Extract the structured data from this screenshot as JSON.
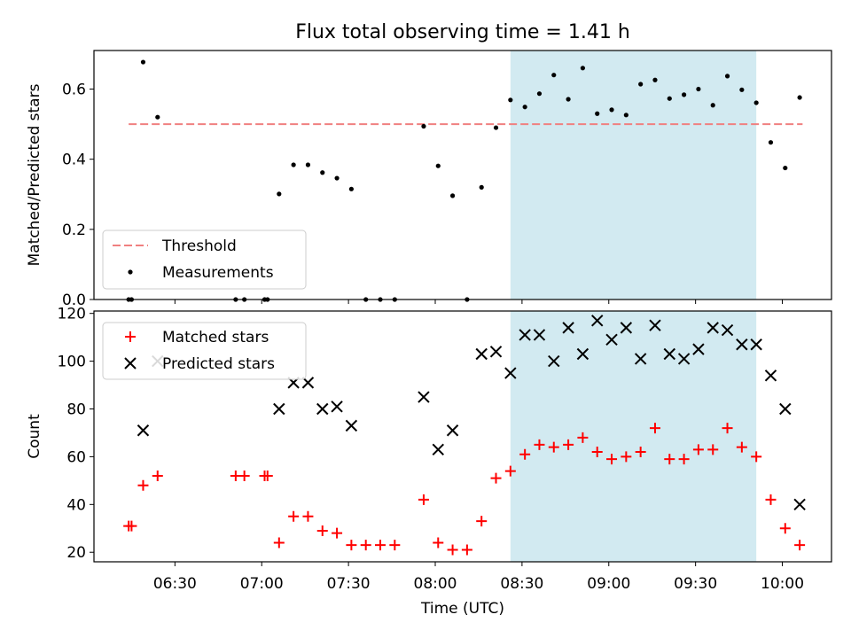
{
  "figure": {
    "title": "Flux total observing time = 1.41 h"
  },
  "chart_data": [
    {
      "type": "scatter",
      "ylabel": "Matched/Predicted stars",
      "xlabel": "",
      "x_unit": "minutes of day (UTC)",
      "xlim": [
        362,
        617
      ],
      "ylim": [
        0,
        0.71
      ],
      "yticks": [
        {
          "value": 0,
          "label": "0.0"
        },
        {
          "value": 0.2,
          "label": "0.2"
        },
        {
          "value": 0.4,
          "label": "0.4"
        },
        {
          "value": 0.6,
          "label": "0.6"
        }
      ],
      "xticks": [
        {
          "value": 390,
          "label": "06:30"
        },
        {
          "value": 420,
          "label": "07:00"
        },
        {
          "value": 450,
          "label": "07:30"
        },
        {
          "value": 480,
          "label": "08:00"
        },
        {
          "value": 510,
          "label": "08:30"
        },
        {
          "value": 540,
          "label": "09:00"
        },
        {
          "value": 570,
          "label": "09:30"
        },
        {
          "value": 600,
          "label": "10:00"
        }
      ],
      "shaded_span": {
        "x0": 506,
        "x1": 591,
        "color": "#add8e6"
      },
      "threshold": {
        "name": "Threshold",
        "value": 0.5,
        "x0": 374,
        "x1": 607,
        "color": "#f08080"
      },
      "series": [
        {
          "name": "Measurements",
          "color": "#000000",
          "points": [
            [
              374,
              0.0
            ],
            [
              375,
              0.0
            ],
            [
              379,
              0.677
            ],
            [
              384,
              0.52
            ],
            [
              411,
              0.0
            ],
            [
              414,
              0.0
            ],
            [
              421,
              0.0
            ],
            [
              422,
              0.0
            ],
            [
              426,
              0.301
            ],
            [
              431,
              0.384
            ],
            [
              436,
              0.384
            ],
            [
              441,
              0.362
            ],
            [
              446,
              0.346
            ],
            [
              451,
              0.315
            ],
            [
              456,
              0.0
            ],
            [
              461,
              0.0
            ],
            [
              466,
              0.0
            ],
            [
              476,
              0.494
            ],
            [
              481,
              0.381
            ],
            [
              486,
              0.296
            ],
            [
              491,
              0.0
            ],
            [
              496,
              0.32
            ],
            [
              501,
              0.49
            ],
            [
              506,
              0.569
            ],
            [
              511,
              0.549
            ],
            [
              516,
              0.587
            ],
            [
              521,
              0.64
            ],
            [
              526,
              0.571
            ],
            [
              531,
              0.66
            ],
            [
              536,
              0.53
            ],
            [
              541,
              0.541
            ],
            [
              546,
              0.526
            ],
            [
              551,
              0.614
            ],
            [
              556,
              0.626
            ],
            [
              561,
              0.573
            ],
            [
              566,
              0.584
            ],
            [
              571,
              0.6
            ],
            [
              576,
              0.554
            ],
            [
              581,
              0.637
            ],
            [
              586,
              0.598
            ],
            [
              591,
              0.561
            ],
            [
              596,
              0.448
            ],
            [
              601,
              0.375
            ],
            [
              606,
              0.576
            ]
          ]
        }
      ],
      "legend": {
        "position": "lower-left",
        "entries": [
          "Threshold",
          "Measurements"
        ]
      }
    },
    {
      "type": "scatter",
      "ylabel": "Count",
      "xlabel": "Time (UTC)",
      "x_unit": "minutes of day (UTC)",
      "xlim": [
        362,
        617
      ],
      "ylim": [
        16,
        121
      ],
      "yticks": [
        {
          "value": 20,
          "label": "20"
        },
        {
          "value": 40,
          "label": "40"
        },
        {
          "value": 60,
          "label": "60"
        },
        {
          "value": 80,
          "label": "80"
        },
        {
          "value": 100,
          "label": "100"
        },
        {
          "value": 120,
          "label": "120"
        }
      ],
      "xticks": [
        {
          "value": 390,
          "label": "06:30"
        },
        {
          "value": 420,
          "label": "07:00"
        },
        {
          "value": 450,
          "label": "07:30"
        },
        {
          "value": 480,
          "label": "08:00"
        },
        {
          "value": 510,
          "label": "08:30"
        },
        {
          "value": 540,
          "label": "09:00"
        },
        {
          "value": 570,
          "label": "09:30"
        },
        {
          "value": 600,
          "label": "10:00"
        }
      ],
      "shaded_span": {
        "x0": 506,
        "x1": 591,
        "color": "#add8e6"
      },
      "series": [
        {
          "name": "Matched stars",
          "marker": "plus",
          "color": "#ff0000",
          "points": [
            [
              374,
              31
            ],
            [
              375,
              31
            ],
            [
              379,
              48
            ],
            [
              384,
              52
            ],
            [
              411,
              52
            ],
            [
              414,
              52
            ],
            [
              421,
              52
            ],
            [
              422,
              52
            ],
            [
              426,
              24
            ],
            [
              431,
              35
            ],
            [
              436,
              35
            ],
            [
              441,
              29
            ],
            [
              446,
              28
            ],
            [
              451,
              23
            ],
            [
              456,
              23
            ],
            [
              461,
              23
            ],
            [
              466,
              23
            ],
            [
              476,
              42
            ],
            [
              481,
              24
            ],
            [
              486,
              21
            ],
            [
              491,
              21
            ],
            [
              496,
              33
            ],
            [
              501,
              51
            ],
            [
              506,
              54
            ],
            [
              511,
              61
            ],
            [
              516,
              65
            ],
            [
              521,
              64
            ],
            [
              526,
              65
            ],
            [
              531,
              68
            ],
            [
              536,
              62
            ],
            [
              541,
              59
            ],
            [
              546,
              60
            ],
            [
              551,
              62
            ],
            [
              556,
              72
            ],
            [
              561,
              59
            ],
            [
              566,
              59
            ],
            [
              571,
              63
            ],
            [
              576,
              63
            ],
            [
              581,
              72
            ],
            [
              586,
              64
            ],
            [
              591,
              60
            ],
            [
              596,
              42
            ],
            [
              601,
              30
            ],
            [
              606,
              23
            ]
          ]
        },
        {
          "name": "Predicted stars",
          "marker": "x",
          "color": "#000000",
          "points": [
            [
              379,
              71
            ],
            [
              384,
              100
            ],
            [
              426,
              80
            ],
            [
              431,
              91
            ],
            [
              436,
              91
            ],
            [
              441,
              80
            ],
            [
              446,
              81
            ],
            [
              451,
              73
            ],
            [
              476,
              85
            ],
            [
              481,
              63
            ],
            [
              486,
              71
            ],
            [
              496,
              103
            ],
            [
              501,
              104
            ],
            [
              506,
              95
            ],
            [
              511,
              111
            ],
            [
              516,
              111
            ],
            [
              521,
              100
            ],
            [
              526,
              114
            ],
            [
              531,
              103
            ],
            [
              536,
              117
            ],
            [
              541,
              109
            ],
            [
              546,
              114
            ],
            [
              551,
              101
            ],
            [
              556,
              115
            ],
            [
              561,
              103
            ],
            [
              566,
              101
            ],
            [
              571,
              105
            ],
            [
              576,
              114
            ],
            [
              581,
              113
            ],
            [
              586,
              107
            ],
            [
              591,
              107
            ],
            [
              596,
              94
            ],
            [
              601,
              80
            ],
            [
              606,
              40
            ]
          ]
        }
      ],
      "legend": {
        "position": "upper-left",
        "entries": [
          "Matched stars",
          "Predicted stars"
        ]
      }
    }
  ]
}
